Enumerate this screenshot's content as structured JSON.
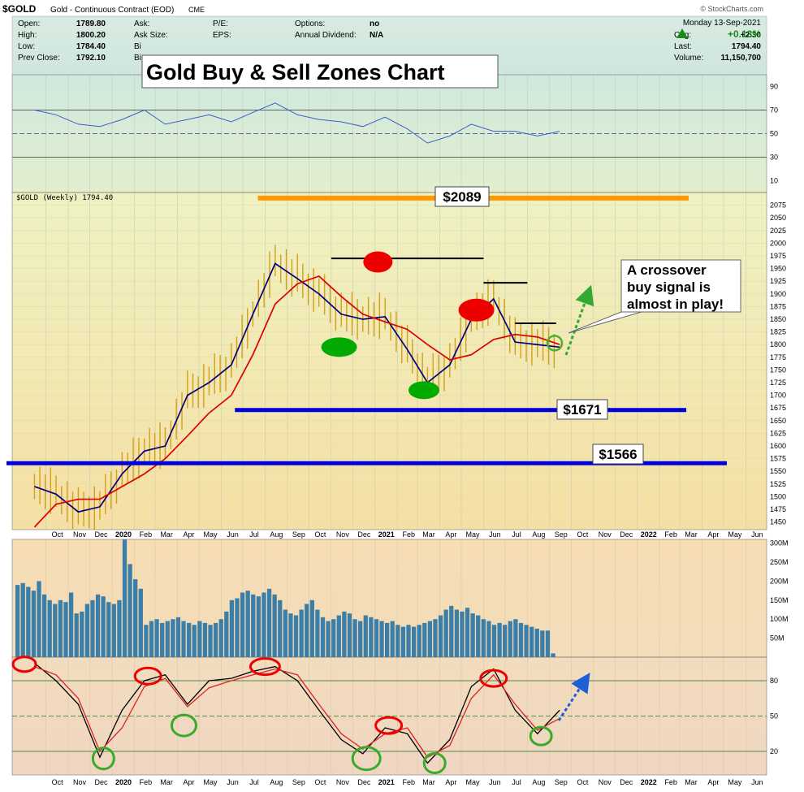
{
  "header": {
    "symbol": "$GOLD",
    "name": "Gold - Continuous Contract (EOD)",
    "exchange": "CME",
    "watermark": "© StockCharts.com",
    "date": "Monday  13-Sep-2021",
    "fields": [
      {
        "label": "Open:",
        "value": "1789.80"
      },
      {
        "label": "High:",
        "value": "1800.20"
      },
      {
        "label": "Low:",
        "value": "1784.40"
      },
      {
        "label": "Prev Close:",
        "value": "1792.10"
      }
    ],
    "fields2": [
      {
        "label": "Ask:",
        "value": ""
      },
      {
        "label": "Ask Size:",
        "value": ""
      },
      {
        "label": "Bi",
        "value": ""
      },
      {
        "label": "Bi",
        "value": ""
      }
    ],
    "fields3": [
      {
        "label": "P/E:",
        "value": ""
      },
      {
        "label": "EPS:",
        "value": ""
      }
    ],
    "fields4": [
      {
        "label": "Options:",
        "value": "no"
      },
      {
        "label": "Annual Dividend:",
        "value": "N/A"
      }
    ],
    "quote": [
      {
        "label": "Chg:",
        "value": "+2.30"
      },
      {
        "label": "Last:",
        "value": "1794.40"
      },
      {
        "label": "Volume:",
        "value": "11,150,700"
      }
    ],
    "pct_change": "+0.13%"
  },
  "overlay_title": "Gold Buy & Sell Zones Chart",
  "price_legend": "$GOLD (Weekly) 1794.40",
  "annotations": {
    "top": "$2089",
    "support1": "$1671",
    "support2": "$1566",
    "callout": [
      "A crossover",
      "buy signal is",
      "almost in play!"
    ]
  },
  "colors": {
    "up_bar": "#d4a017",
    "fast_ma": "#000080",
    "slow_ma": "#dd0000",
    "support": "#0000dd",
    "resistance_top": "#ff9900",
    "buy": "#00aa00",
    "sell": "#ee0000",
    "volume": "#3b7fa8"
  },
  "chart_data": [
    {
      "type": "line",
      "panel": "RSI",
      "y_ticks": [
        90,
        70,
        50,
        30,
        10
      ],
      "ylim": [
        0,
        100
      ],
      "reference_lines": [
        70,
        50,
        30
      ],
      "x": [
        "2019-09",
        "2019-10",
        "2019-11",
        "2019-12",
        "2020-01",
        "2020-02",
        "2020-03",
        "2020-04",
        "2020-05",
        "2020-06",
        "2020-07",
        "2020-08",
        "2020-09",
        "2020-10",
        "2020-11",
        "2020-12",
        "2021-01",
        "2021-02",
        "2021-03",
        "2021-04",
        "2021-05",
        "2021-06",
        "2021-07",
        "2021-08",
        "2021-09"
      ],
      "series": [
        {
          "values": [
            70,
            66,
            58,
            56,
            62,
            70,
            58,
            62,
            66,
            60,
            68,
            76,
            66,
            62,
            60,
            56,
            64,
            54,
            42,
            48,
            58,
            52,
            52,
            48,
            52
          ]
        }
      ]
    },
    {
      "type": "line",
      "panel": "Price",
      "y_ticks": [
        2075,
        2050,
        2025,
        2000,
        1975,
        1950,
        1925,
        1900,
        1875,
        1850,
        1825,
        1800,
        1775,
        1750,
        1725,
        1700,
        1675,
        1650,
        1625,
        1600,
        1575,
        1550,
        1525,
        1500,
        1475,
        1450
      ],
      "ylim": [
        1435,
        2100
      ],
      "x_labels": [
        "Oct",
        "Nov",
        "Dec",
        "2020",
        "Feb",
        "Mar",
        "Apr",
        "May",
        "Jun",
        "Jul",
        "Aug",
        "Sep",
        "Oct",
        "Nov",
        "Dec",
        "2021",
        "Feb",
        "Mar",
        "Apr",
        "May",
        "Jun",
        "Jul",
        "Aug",
        "Sep",
        "Oct",
        "Nov",
        "Dec",
        "2022",
        "Feb",
        "Mar",
        "Apr",
        "May",
        "Jun"
      ],
      "x": [
        "2019-09",
        "2019-10",
        "2019-11",
        "2019-12",
        "2020-01",
        "2020-02",
        "2020-03",
        "2020-04",
        "2020-05",
        "2020-06",
        "2020-07",
        "2020-08",
        "2020-09",
        "2020-10",
        "2020-11",
        "2020-12",
        "2021-01",
        "2021-02",
        "2021-03",
        "2021-04",
        "2021-05",
        "2021-06",
        "2021-07",
        "2021-08",
        "2021-09"
      ],
      "series": [
        {
          "values": [
            1520,
            1505,
            1470,
            1480,
            1545,
            1590,
            1600,
            1700,
            1725,
            1760,
            1860,
            1960,
            1930,
            1900,
            1860,
            1850,
            1855,
            1790,
            1725,
            1760,
            1850,
            1890,
            1805,
            1800,
            1795
          ]
        },
        {
          "values": [
            1440,
            1485,
            1495,
            1495,
            1520,
            1545,
            1575,
            1620,
            1665,
            1700,
            1780,
            1880,
            1920,
            1935,
            1895,
            1860,
            1845,
            1830,
            1800,
            1770,
            1780,
            1810,
            1820,
            1815,
            1800
          ]
        }
      ],
      "levels": [
        {
          "value": 2089,
          "label": "$2089"
        },
        {
          "value": 1671,
          "label": "$1671"
        },
        {
          "value": 1566,
          "label": "$1566"
        }
      ]
    },
    {
      "type": "bar",
      "panel": "Volume",
      "y_ticks": [
        "300M",
        "250M",
        "200M",
        "150M",
        "100M",
        "50M"
      ],
      "ylim": [
        0,
        310
      ],
      "values": [
        190,
        195,
        185,
        175,
        200,
        165,
        150,
        140,
        150,
        145,
        170,
        115,
        120,
        140,
        150,
        165,
        160,
        145,
        140,
        150,
        310,
        245,
        205,
        180,
        85,
        95,
        100,
        90,
        95,
        100,
        105,
        95,
        90,
        85,
        95,
        90,
        85,
        90,
        100,
        120,
        150,
        155,
        170,
        175,
        165,
        160,
        170,
        180,
        165,
        150,
        125,
        115,
        110,
        125,
        140,
        150,
        125,
        105,
        95,
        100,
        110,
        120,
        115,
        100,
        95,
        110,
        105,
        100,
        95,
        90,
        95,
        85,
        80,
        85,
        80,
        85,
        90,
        95,
        100,
        110,
        125,
        135,
        125,
        120,
        130,
        115,
        110,
        100,
        95,
        85,
        90,
        85,
        95,
        100,
        90,
        85,
        80,
        75,
        70,
        70,
        10
      ]
    },
    {
      "type": "line",
      "panel": "Stochastic",
      "y_ticks": [
        80,
        50,
        20
      ],
      "ylim": [
        0,
        100
      ],
      "reference_lines": [
        80,
        50,
        20
      ],
      "x": [
        "2019-09",
        "2019-10",
        "2019-11",
        "2019-12",
        "2020-01",
        "2020-02",
        "2020-03",
        "2020-04",
        "2020-05",
        "2020-06",
        "2020-07",
        "2020-08",
        "2020-09",
        "2020-10",
        "2020-11",
        "2020-12",
        "2021-01",
        "2021-02",
        "2021-03",
        "2021-04",
        "2021-05",
        "2021-06",
        "2021-07",
        "2021-08",
        "2021-09"
      ],
      "series": [
        {
          "values": [
            95,
            80,
            60,
            15,
            55,
            80,
            85,
            60,
            80,
            82,
            88,
            92,
            80,
            55,
            30,
            18,
            40,
            35,
            10,
            30,
            75,
            90,
            55,
            35,
            55
          ]
        },
        {
          "values": [
            92,
            85,
            65,
            20,
            40,
            75,
            82,
            58,
            74,
            80,
            85,
            90,
            85,
            60,
            35,
            22,
            35,
            40,
            15,
            25,
            65,
            85,
            60,
            38,
            48
          ]
        }
      ]
    }
  ]
}
